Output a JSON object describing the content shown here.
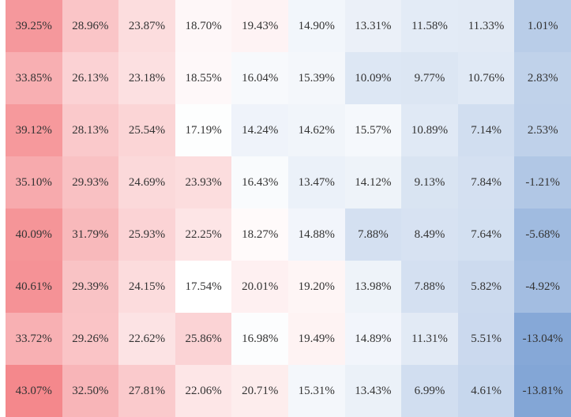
{
  "chart_data": {
    "type": "heatmap",
    "unit": "%",
    "colors": {
      "high": "#f4888c",
      "mid": "#ffffff",
      "low": "#83a6d6"
    },
    "rows": [
      [
        39.25,
        28.96,
        23.87,
        18.7,
        19.43,
        14.9,
        13.31,
        11.58,
        11.33,
        1.01
      ],
      [
        33.85,
        26.13,
        23.18,
        18.55,
        16.04,
        15.39,
        10.09,
        9.77,
        10.76,
        2.83
      ],
      [
        39.12,
        28.13,
        25.54,
        17.19,
        14.24,
        14.62,
        15.57,
        10.89,
        7.14,
        2.53
      ],
      [
        35.1,
        29.93,
        24.69,
        23.93,
        16.43,
        13.47,
        14.12,
        9.13,
        7.84,
        -1.21
      ],
      [
        40.09,
        31.79,
        25.93,
        22.25,
        18.27,
        14.88,
        7.88,
        8.49,
        7.64,
        -5.68
      ],
      [
        40.61,
        29.39,
        24.15,
        17.54,
        20.01,
        19.2,
        13.98,
        7.88,
        5.82,
        -4.92
      ],
      [
        33.72,
        29.26,
        22.62,
        25.86,
        16.98,
        19.49,
        14.89,
        11.31,
        5.51,
        -13.04
      ],
      [
        43.07,
        32.5,
        27.81,
        22.06,
        20.71,
        15.31,
        13.43,
        6.99,
        4.61,
        -13.81
      ]
    ],
    "labels": [
      [
        "39.25%",
        "28.96%",
        "23.87%",
        "18.70%",
        "19.43%",
        "14.90%",
        "13.31%",
        "11.58%",
        "11.33%",
        "1.01%"
      ],
      [
        "33.85%",
        "26.13%",
        "23.18%",
        "18.55%",
        "16.04%",
        "15.39%",
        "10.09%",
        "9.77%",
        "10.76%",
        "2.83%"
      ],
      [
        "39.12%",
        "28.13%",
        "25.54%",
        "17.19%",
        "14.24%",
        "14.62%",
        "15.57%",
        "10.89%",
        "7.14%",
        "2.53%"
      ],
      [
        "35.10%",
        "29.93%",
        "24.69%",
        "23.93%",
        "16.43%",
        "13.47%",
        "14.12%",
        "9.13%",
        "7.84%",
        "-1.21%"
      ],
      [
        "40.09%",
        "31.79%",
        "25.93%",
        "22.25%",
        "18.27%",
        "14.88%",
        "7.88%",
        "8.49%",
        "7.64%",
        "-5.68%"
      ],
      [
        "40.61%",
        "29.39%",
        "24.15%",
        "17.54%",
        "20.01%",
        "19.20%",
        "13.98%",
        "7.88%",
        "5.82%",
        "-4.92%"
      ],
      [
        "33.72%",
        "29.26%",
        "22.62%",
        "25.86%",
        "16.98%",
        "19.49%",
        "14.89%",
        "11.31%",
        "5.51%",
        "-13.04%"
      ],
      [
        "43.07%",
        "32.50%",
        "27.81%",
        "22.06%",
        "20.71%",
        "15.31%",
        "13.43%",
        "6.99%",
        "4.61%",
        "-13.81%"
      ]
    ]
  }
}
